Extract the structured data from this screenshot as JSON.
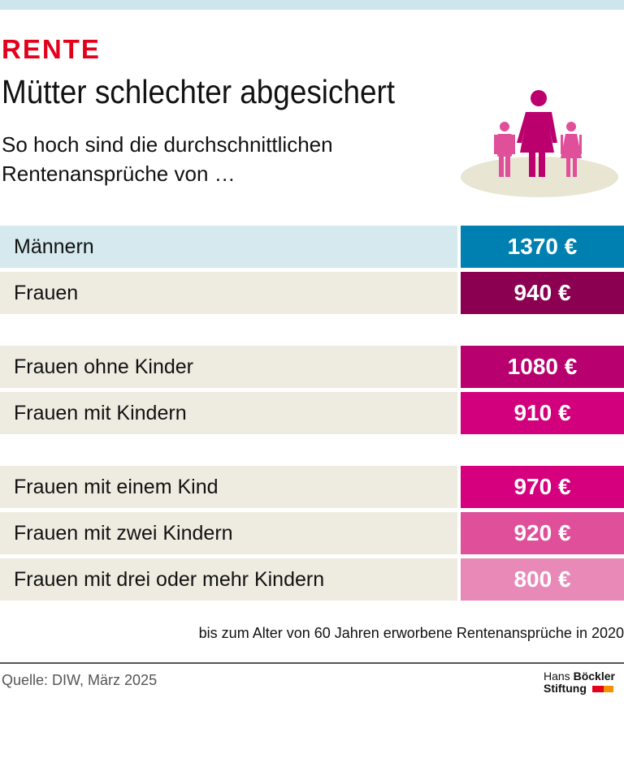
{
  "header": {
    "kicker": "RENTE",
    "title": "Mütter schlechter abgesichert",
    "subtitle": "So hoch sind die durchschnittlichen Rentenansprüche von …"
  },
  "chart_data": {
    "type": "table",
    "unit": "€",
    "rows": [
      {
        "label": "Männern",
        "value": 1370,
        "text": "1370 €",
        "color": "#0080b0",
        "bg": "#d5e9ee"
      },
      {
        "label": "Frauen",
        "value": 940,
        "text": "940 €",
        "color": "#8c0052",
        "bg": "#eeece0"
      },
      {
        "label": "Frauen ohne Kinder",
        "value": 1080,
        "text": "1080 €",
        "color": "#b8006e",
        "bg": "#eeece0"
      },
      {
        "label": "Frauen mit Kindern",
        "value": 910,
        "text": "910 €",
        "color": "#d3007e",
        "bg": "#eeece0"
      },
      {
        "label": "Frauen mit einem Kind",
        "value": 970,
        "text": "970 €",
        "color": "#d6007f",
        "bg": "#eeece0"
      },
      {
        "label": "Frauen mit zwei Kindern",
        "value": 920,
        "text": "920 €",
        "color": "#e0509a",
        "bg": "#eeece0"
      },
      {
        "label": "Frauen mit drei oder mehr Kindern",
        "value": 800,
        "text": "800 €",
        "color": "#e889b8",
        "bg": "#eeece0"
      }
    ]
  },
  "footer": {
    "note": "bis zum Alter von 60 Jahren erworbene Rentenansprüche in 2020",
    "source": "Quelle: DIW, März 2025",
    "logo_line1a": "Hans ",
    "logo_line1b": "Böckler",
    "logo_line2": "Stiftung"
  },
  "icons": {
    "illustration": "mother-with-children-icon"
  }
}
